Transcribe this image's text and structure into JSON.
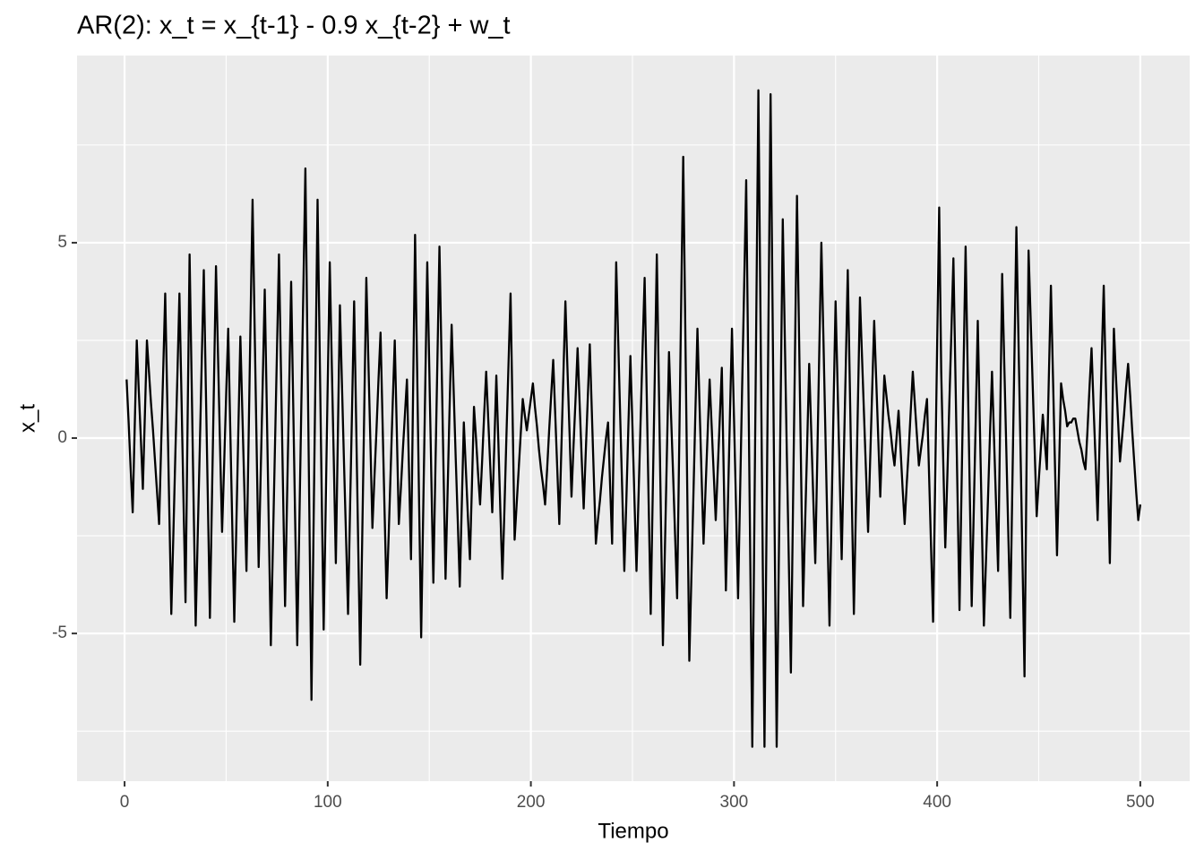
{
  "chart_data": {
    "type": "line",
    "title": "AR(2): x_t = x_{t-1} - 0.9 x_{t-2} + w_t",
    "x_label": "Tiempo",
    "y_label": "x_t",
    "color": "#000000",
    "grid": true,
    "xlim": [
      -23.4,
      524.3
    ],
    "ylim": [
      -8.78,
      9.79
    ],
    "xticks": [
      0,
      100,
      200,
      300,
      400,
      500
    ],
    "yticks": [
      -5,
      0,
      5
    ],
    "x": [
      1,
      2,
      3,
      4,
      5,
      6,
      7,
      8,
      9,
      10,
      11,
      12,
      13,
      14,
      15,
      16,
      17,
      18,
      19,
      20,
      21,
      22,
      23,
      24,
      25,
      26,
      27,
      28,
      29,
      30,
      31,
      32,
      33,
      34,
      35,
      36,
      37,
      38,
      39,
      40,
      41,
      42,
      43,
      44,
      45,
      46,
      47,
      48,
      49,
      50,
      51,
      52,
      53,
      54,
      55,
      56,
      57,
      58,
      59,
      60,
      61,
      62,
      63,
      64,
      65,
      66,
      67,
      68,
      69,
      70,
      71,
      72,
      73,
      74,
      75,
      76,
      77,
      78,
      79,
      80,
      81,
      82,
      83,
      84,
      85,
      86,
      87,
      88,
      89,
      90,
      91,
      92,
      93,
      94,
      95,
      96,
      97,
      98,
      99,
      100,
      101,
      102,
      103,
      104,
      105,
      106,
      107,
      108,
      109,
      110,
      111,
      112,
      113,
      114,
      115,
      116,
      117,
      118,
      119,
      120,
      121,
      122,
      123,
      124,
      125,
      126,
      127,
      128,
      129,
      130,
      131,
      132,
      133,
      134,
      135,
      136,
      137,
      138,
      139,
      140,
      141,
      142,
      143,
      144,
      145,
      146,
      147,
      148,
      149,
      150,
      151,
      152,
      153,
      154,
      155,
      156,
      157,
      158,
      159,
      160,
      161,
      162,
      163,
      164,
      165,
      166,
      167,
      168,
      169,
      170,
      171,
      172,
      173,
      174,
      175,
      176,
      177,
      178,
      179,
      180,
      181,
      182,
      183,
      184,
      185,
      186,
      187,
      188,
      189,
      190,
      191,
      192,
      193,
      194,
      195,
      196,
      197,
      198,
      199,
      200,
      201,
      202,
      203,
      204,
      205,
      206,
      207,
      208,
      209,
      210,
      211,
      212,
      213,
      214,
      215,
      216,
      217,
      218,
      219,
      220,
      221,
      222,
      223,
      224,
      225,
      226,
      227,
      228,
      229,
      230,
      231,
      232,
      233,
      234,
      235,
      236,
      237,
      238,
      239,
      240,
      241,
      242,
      243,
      244,
      245,
      246,
      247,
      248,
      249,
      250,
      251,
      252,
      253,
      254,
      255,
      256,
      257,
      258,
      259,
      260,
      261,
      262,
      263,
      264,
      265,
      266,
      267,
      268,
      269,
      270,
      271,
      272,
      273,
      274,
      275,
      276,
      277,
      278,
      279,
      280,
      281,
      282,
      283,
      284,
      285,
      286,
      287,
      288,
      289,
      290,
      291,
      292,
      293,
      294,
      295,
      296,
      297,
      298,
      299,
      300,
      301,
      302,
      303,
      304,
      305,
      306,
      307,
      308,
      309,
      310,
      311,
      312,
      313,
      314,
      315,
      316,
      317,
      318,
      319,
      320,
      321,
      322,
      323,
      324,
      325,
      326,
      327,
      328,
      329,
      330,
      331,
      332,
      333,
      334,
      335,
      336,
      337,
      338,
      339,
      340,
      341,
      342,
      343,
      344,
      345,
      346,
      347,
      348,
      349,
      350,
      351,
      352,
      353,
      354,
      355,
      356,
      357,
      358,
      359,
      360,
      361,
      362,
      363,
      364,
      365,
      366,
      367,
      368,
      369,
      370,
      371,
      372,
      373,
      374,
      375,
      376,
      377,
      378,
      379,
      380,
      381,
      382,
      383,
      384,
      385,
      386,
      387,
      388,
      389,
      390,
      391,
      392,
      393,
      394,
      395,
      396,
      397,
      398,
      399,
      400,
      401,
      402,
      403,
      404,
      405,
      406,
      407,
      408,
      409,
      410,
      411,
      412,
      413,
      414,
      415,
      416,
      417,
      418,
      419,
      420,
      421,
      422,
      423,
      424,
      425,
      426,
      427,
      428,
      429,
      430,
      431,
      432,
      433,
      434,
      435,
      436,
      437,
      438,
      439,
      440,
      441,
      442,
      443,
      444,
      445,
      446,
      447,
      448,
      449,
      450,
      451,
      452,
      453,
      454,
      455,
      456,
      457,
      458,
      459,
      460,
      461,
      462,
      463,
      464,
      465,
      466,
      467,
      468,
      469,
      470,
      471,
      472,
      473,
      474,
      475,
      476,
      477,
      478,
      479,
      480,
      481,
      482,
      483,
      484,
      485,
      486,
      487,
      488,
      489,
      490,
      491,
      492,
      493,
      494,
      495,
      496,
      497,
      498,
      499,
      500
    ],
    "values": [
      1.5,
      0.4,
      -0.8,
      -1.9,
      0.3,
      2.5,
      1.2,
      0.0,
      -1.3,
      0.6,
      2.5,
      1.7,
      0.9,
      0.2,
      -0.6,
      -1.4,
      -2.2,
      -0.2,
      1.7,
      3.7,
      1.0,
      -1.8,
      -4.5,
      -2.5,
      -0.4,
      1.6,
      3.7,
      1.1,
      -1.6,
      -4.2,
      0.3,
      4.7,
      1.5,
      -1.7,
      -4.8,
      -2.5,
      -0.3,
      2.0,
      4.3,
      1.3,
      -1.6,
      -4.6,
      -1.6,
      1.4,
      4.4,
      2.1,
      -0.2,
      -2.4,
      -0.7,
      1.1,
      2.8,
      0.3,
      -2.2,
      -4.7,
      -2.3,
      0.2,
      2.6,
      0.6,
      -1.4,
      -3.4,
      -0.2,
      3.0,
      6.1,
      2.9,
      -0.2,
      -3.3,
      -0.9,
      1.4,
      3.8,
      0.8,
      -2.3,
      -5.3,
      -2.8,
      -0.3,
      2.2,
      4.7,
      1.7,
      -1.3,
      -4.3,
      -1.5,
      1.2,
      4.0,
      0.9,
      -2.2,
      -5.3,
      -2.3,
      0.8,
      3.8,
      6.9,
      2.4,
      -2.1,
      -6.7,
      -2.4,
      1.8,
      6.1,
      2.4,
      -1.3,
      -4.9,
      -1.8,
      1.4,
      4.5,
      1.9,
      -0.6,
      -3.2,
      0.1,
      3.4,
      1.4,
      -0.6,
      -2.5,
      -4.5,
      -1.8,
      0.8,
      3.5,
      0.4,
      -2.7,
      -5.8,
      -2.5,
      0.8,
      4.1,
      2.0,
      -0.1,
      -2.3,
      -1.0,
      0.2,
      1.5,
      2.7,
      0.4,
      -1.9,
      -4.1,
      -2.5,
      -0.8,
      0.9,
      2.5,
      0.2,
      -2.2,
      -1.3,
      -0.3,
      0.6,
      1.5,
      -0.8,
      -3.1,
      1.1,
      5.2,
      1.8,
      -1.7,
      -5.1,
      -1.9,
      1.3,
      4.5,
      1.8,
      -1.0,
      -3.7,
      -0.8,
      2.0,
      4.9,
      2.1,
      -0.8,
      -3.6,
      -1.4,
      0.8,
      2.9,
      1.2,
      -0.5,
      -2.1,
      -3.8,
      -1.7,
      0.4,
      -0.8,
      -2.0,
      -3.1,
      -1.2,
      0.8,
      0.0,
      -0.9,
      -1.7,
      -0.6,
      0.6,
      1.7,
      0.5,
      -0.7,
      -1.9,
      -0.2,
      1.6,
      -0.1,
      -1.9,
      -3.6,
      -1.8,
      0.1,
      1.9,
      3.7,
      0.6,
      -2.6,
      -1.7,
      -0.8,
      0.1,
      1.0,
      0.6,
      0.2,
      0.6,
      1.0,
      1.4,
      0.8,
      0.3,
      -0.3,
      -0.8,
      -1.2,
      -1.7,
      -0.8,
      0.2,
      1.1,
      2.0,
      0.6,
      -0.8,
      -2.2,
      -0.3,
      1.6,
      3.5,
      1.8,
      0.2,
      -1.5,
      -0.2,
      1.0,
      2.3,
      0.9,
      -0.5,
      -1.8,
      -0.4,
      1.0,
      2.4,
      0.7,
      -1.0,
      -2.7,
      -2.1,
      -1.6,
      -1.0,
      -0.5,
      0.0,
      0.4,
      -1.2,
      -2.7,
      0.9,
      4.5,
      2.5,
      0.5,
      -1.4,
      -3.4,
      -1.6,
      0.3,
      2.1,
      0.3,
      -1.6,
      -3.4,
      -1.5,
      0.4,
      2.3,
      4.1,
      1.2,
      -1.7,
      -4.5,
      -1.4,
      1.6,
      4.7,
      1.4,
      -2.0,
      -5.3,
      -2.8,
      -0.3,
      2.2,
      0.6,
      -0.9,
      -2.5,
      -4.1,
      -0.3,
      3.5,
      7.2,
      2.9,
      -1.4,
      -5.7,
      -3.6,
      -1.5,
      0.7,
      2.8,
      0.9,
      -0.9,
      -2.7,
      -1.3,
      0.1,
      1.5,
      0.3,
      -0.9,
      -2.1,
      -0.8,
      0.5,
      1.8,
      -1.1,
      -3.9,
      -1.7,
      0.6,
      2.8,
      0.5,
      -1.8,
      -4.1,
      -1.4,
      1.3,
      3.9,
      6.6,
      1.8,
      -3.1,
      -7.9,
      -2.3,
      3.3,
      8.9,
      3.3,
      -2.3,
      -7.9,
      -2.3,
      3.2,
      8.8,
      3.2,
      -2.4,
      -7.9,
      -3.4,
      1.1,
      5.6,
      2.6,
      -0.4,
      -3.2,
      -6.0,
      -1.9,
      2.1,
      6.2,
      2.7,
      -0.8,
      -4.3,
      -2.2,
      -0.2,
      1.9,
      0.2,
      -1.5,
      -3.2,
      -0.5,
      2.3,
      5.0,
      2.6,
      0.1,
      -2.4,
      -4.8,
      -2.0,
      0.8,
      3.5,
      1.3,
      -0.9,
      -3.1,
      -0.6,
      1.8,
      4.3,
      1.4,
      -1.6,
      -4.5,
      -1.8,
      0.9,
      3.6,
      2.1,
      0.6,
      -0.9,
      -2.4,
      -0.6,
      1.2,
      3.0,
      1.5,
      0.0,
      -1.5,
      0.1,
      1.6,
      1.1,
      0.6,
      0.2,
      -0.3,
      -0.7,
      0.0,
      0.7,
      -0.3,
      -1.3,
      -2.2,
      -1.2,
      -0.3,
      0.7,
      1.7,
      0.9,
      0.1,
      -0.7,
      -0.3,
      0.1,
      0.6,
      1.0,
      -0.9,
      -2.8,
      -4.7,
      -1.2,
      2.4,
      5.9,
      1.7,
      -0.6,
      -2.8,
      -1.0,
      0.9,
      2.7,
      4.6,
      1.6,
      -1.4,
      -4.4,
      -1.3,
      1.8,
      4.9,
      1.8,
      -1.2,
      -4.3,
      -1.9,
      0.5,
      3.0,
      0.4,
      -2.2,
      -4.8,
      -3.2,
      -1.6,
      0.1,
      1.7,
      0.0,
      -1.7,
      -3.4,
      0.4,
      4.2,
      2.0,
      -0.2,
      -2.4,
      -4.6,
      -1.3,
      2.0,
      5.4,
      2.6,
      -0.2,
      -3.1,
      -6.1,
      -0.7,
      4.8,
      3.1,
      1.4,
      -0.3,
      -2.0,
      -1.1,
      -0.3,
      0.6,
      -0.1,
      -0.8,
      1.6,
      3.9,
      1.6,
      -0.7,
      -3.0,
      -0.8,
      1.4,
      1.0,
      0.7,
      0.3,
      0.4,
      0.4,
      0.5,
      0.5,
      0.2,
      -0.1,
      -0.3,
      -0.6,
      -0.8,
      0.2,
      1.3,
      2.3,
      0.8,
      -0.6,
      -2.1,
      0.0,
      2.0,
      3.9,
      1.5,
      -0.8,
      -3.2,
      -0.2,
      2.8,
      1.6,
      0.5,
      -0.6,
      0.0,
      0.6,
      1.3,
      1.9,
      1.1,
      0.2,
      -0.6,
      -1.4,
      -2.1,
      -1.7
    ]
  }
}
